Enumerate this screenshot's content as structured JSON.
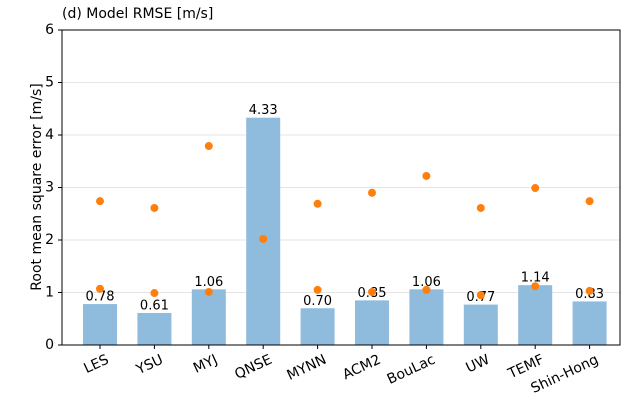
{
  "chart_data": {
    "type": "bar",
    "title": "(d) Model RMSE [m/s]",
    "ylabel": "Root mean square error [m/s]",
    "categories": [
      "LES",
      "YSU",
      "MYJ",
      "QNSE",
      "MYNN",
      "ACM2",
      "BouLac",
      "UW",
      "TEMF",
      "Shin-Hong"
    ],
    "values": [
      0.78,
      0.61,
      1.06,
      4.33,
      0.7,
      0.85,
      1.06,
      0.77,
      1.14,
      0.83
    ],
    "value_labels": [
      "0.78",
      "0.61",
      "1.06",
      "4.33",
      "0.70",
      "0.85",
      "1.06",
      "0.77",
      "1.14",
      "0.83"
    ],
    "color": "#8fbcdd",
    "series": [
      {
        "type": "scatter",
        "color": "#ff7f0e",
        "values": [
          2.74,
          2.61,
          3.79,
          2.02,
          2.69,
          2.9,
          3.22,
          2.61,
          2.99,
          2.74
        ]
      },
      {
        "type": "scatter",
        "color": "#ff7f0e",
        "values": [
          1.07,
          0.99,
          1.01,
          null,
          1.05,
          1.01,
          1.05,
          0.95,
          1.12,
          1.03
        ]
      }
    ],
    "ylim": [
      0,
      6
    ],
    "yticks": [
      0,
      1,
      2,
      3,
      4,
      5,
      6
    ],
    "grid": true
  }
}
